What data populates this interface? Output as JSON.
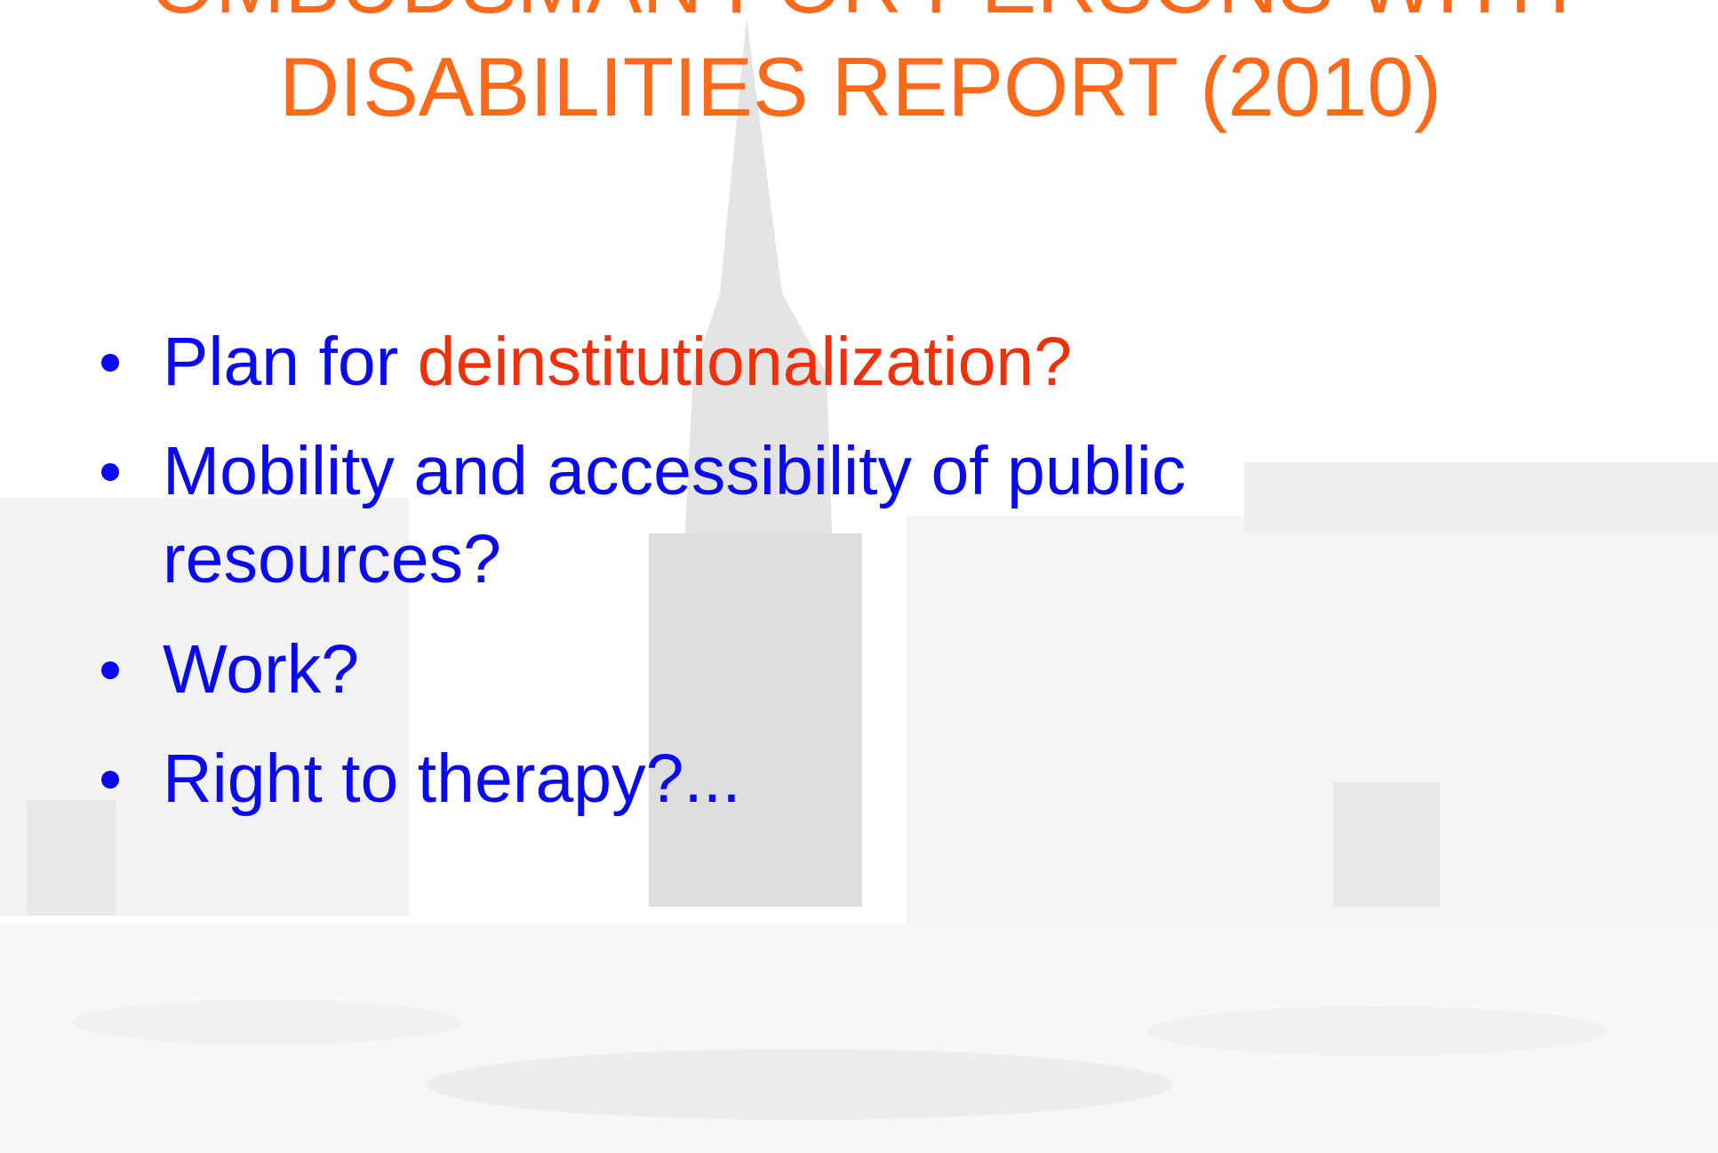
{
  "title": {
    "lines": [
      "OMBUDSMAN FOR PERSONS WITH",
      "DISABILITIES REPORT (2010)"
    ]
  },
  "bullets": [
    {
      "parts": [
        "Plan for ",
        "deinstitutionalization?"
      ]
    },
    {
      "lines": [
        "Mobility and accessibility of public",
        "resources?"
      ]
    },
    {
      "lines": [
        "Work?"
      ]
    },
    {
      "lines": [
        "Right to therapy?..."
      ]
    }
  ]
}
